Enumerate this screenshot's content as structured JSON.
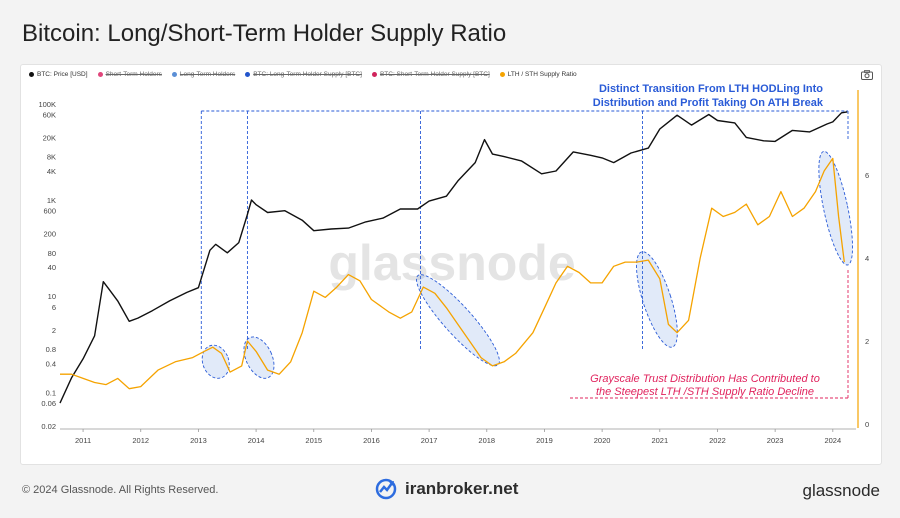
{
  "page": {
    "title": "Bitcoin: Long/Short-Term Holder Supply Ratio",
    "copyright": "© 2024 Glassnode. All Rights Reserved.",
    "site_brand": "iranbroker.net",
    "brand": "glassnode"
  },
  "legend": [
    {
      "label": "BTC: Price [USD]",
      "color": "#111111",
      "active": true
    },
    {
      "label": "Short-Term Holders",
      "color": "#e0457b",
      "active": false
    },
    {
      "label": "Long-Term Holders",
      "color": "#5b8fd6",
      "active": false
    },
    {
      "label": "BTC: Long-Term Holder Supply [BTC]",
      "color": "#2255cc",
      "active": false
    },
    {
      "label": "BTC: Short-Term Holder Supply [BTC]",
      "color": "#d0245c",
      "active": false
    },
    {
      "label": "LTH / STH Supply Ratio",
      "color": "#f5a300",
      "active": true
    }
  ],
  "annotations": {
    "top_line1": "Distinct Transition From LTH HODLing Into",
    "top_line2": "Distribution and Profit Taking On ATH Break",
    "bottom_line1": "Grayscale Trust Distribution Has Contributed to",
    "bottom_line2": "the Steepest LTH /STH Supply Ratio Decline",
    "top_color": "#2a5bd7",
    "bottom_color": "#e0245e"
  },
  "watermark": "glassnode",
  "chart_data": {
    "type": "line",
    "x_ticks": [
      "2011",
      "2012",
      "2013",
      "2014",
      "2015",
      "2016",
      "2017",
      "2018",
      "2019",
      "2020",
      "2021",
      "2022",
      "2023",
      "2024"
    ],
    "left_axis": {
      "label": "",
      "scale": "log",
      "ticks": [
        "100K",
        "60K",
        "20K",
        "8K",
        "4K",
        "1K",
        "600",
        "200",
        "80",
        "40",
        "10",
        "6",
        "2",
        "0.8",
        "0.4",
        "0.1",
        "0.06",
        "0.02"
      ],
      "range": [
        0.02,
        120000
      ]
    },
    "right_axis": {
      "label": "",
      "scale": "linear",
      "ticks": [
        "0",
        "2",
        "4",
        "6"
      ],
      "range": [
        0,
        8
      ]
    },
    "series": [
      {
        "name": "BTC: Price [USD]",
        "color": "#111111",
        "axis": "left",
        "x": [
          2010.6,
          2010.8,
          2011.0,
          2011.2,
          2011.35,
          2011.45,
          2011.6,
          2011.8,
          2011.95,
          2012.2,
          2012.5,
          2012.8,
          2013.0,
          2013.2,
          2013.3,
          2013.5,
          2013.7,
          2013.85,
          2013.92,
          2014.0,
          2014.2,
          2014.5,
          2014.8,
          2015.0,
          2015.3,
          2015.6,
          2015.9,
          2016.2,
          2016.5,
          2016.8,
          2017.0,
          2017.3,
          2017.5,
          2017.8,
          2017.96,
          2018.1,
          2018.3,
          2018.6,
          2018.95,
          2019.2,
          2019.5,
          2019.8,
          2020.0,
          2020.2,
          2020.5,
          2020.8,
          2021.0,
          2021.3,
          2021.55,
          2021.85,
          2022.0,
          2022.3,
          2022.5,
          2022.8,
          2023.0,
          2023.3,
          2023.6,
          2023.9,
          2024.0,
          2024.15,
          2024.25
        ],
        "y": [
          0.06,
          0.2,
          0.5,
          1.5,
          20,
          14,
          8,
          3,
          3.5,
          5,
          8,
          12,
          15,
          90,
          120,
          80,
          130,
          500,
          1000,
          800,
          550,
          600,
          380,
          230,
          250,
          260,
          350,
          420,
          650,
          650,
          950,
          1200,
          2500,
          6000,
          18000,
          9000,
          8000,
          6500,
          3500,
          4000,
          10000,
          8500,
          7500,
          6000,
          9500,
          12000,
          30000,
          58000,
          36000,
          60000,
          45000,
          40000,
          20000,
          17000,
          16500,
          28000,
          26000,
          38000,
          42000,
          65000,
          68000
        ]
      },
      {
        "name": "LTH / STH Supply Ratio",
        "color": "#f5a300",
        "axis": "right",
        "x": [
          2010.6,
          2010.8,
          2011.0,
          2011.2,
          2011.4,
          2011.6,
          2011.8,
          2012.0,
          2012.3,
          2012.6,
          2012.9,
          2013.1,
          2013.25,
          2013.4,
          2013.55,
          2013.75,
          2013.85,
          2014.0,
          2014.2,
          2014.4,
          2014.6,
          2014.8,
          2015.0,
          2015.2,
          2015.4,
          2015.6,
          2015.8,
          2016.0,
          2016.3,
          2016.5,
          2016.7,
          2016.9,
          2017.1,
          2017.3,
          2017.5,
          2017.7,
          2017.9,
          2018.1,
          2018.3,
          2018.5,
          2018.8,
          2019.0,
          2019.2,
          2019.4,
          2019.6,
          2019.8,
          2020.0,
          2020.2,
          2020.4,
          2020.6,
          2020.8,
          2021.0,
          2021.15,
          2021.3,
          2021.5,
          2021.7,
          2021.9,
          2022.1,
          2022.3,
          2022.5,
          2022.7,
          2022.9,
          2023.1,
          2023.3,
          2023.5,
          2023.7,
          2023.85,
          2024.0,
          2024.1,
          2024.2
        ],
        "y": [
          1.2,
          1.2,
          1.1,
          1.0,
          0.95,
          1.1,
          0.85,
          0.9,
          1.3,
          1.5,
          1.6,
          1.75,
          1.85,
          1.7,
          1.25,
          1.4,
          2.0,
          1.75,
          1.3,
          1.2,
          1.5,
          2.2,
          3.2,
          3.05,
          3.3,
          3.6,
          3.45,
          3.0,
          2.7,
          2.55,
          2.7,
          3.3,
          3.15,
          2.8,
          2.4,
          2.0,
          1.6,
          1.4,
          1.5,
          1.7,
          2.2,
          2.8,
          3.4,
          3.8,
          3.65,
          3.4,
          3.4,
          3.8,
          3.9,
          3.9,
          3.95,
          3.5,
          2.4,
          2.2,
          2.5,
          4.0,
          5.2,
          5.0,
          5.1,
          5.3,
          4.8,
          5.0,
          5.6,
          5.0,
          5.2,
          5.6,
          6.1,
          6.4,
          5.0,
          3.9
        ]
      }
    ],
    "highlights": [
      {
        "x0": 2013.05,
        "x1": 2013.85
      },
      {
        "x0": 2013.75,
        "x1": 2014.8
      },
      {
        "x0": 2016.8,
        "x1": 2018.0
      },
      {
        "x0": 2020.7,
        "x1": 2021.3
      },
      {
        "x0": 2023.85,
        "x1": 2024.3
      }
    ],
    "grid": false
  }
}
